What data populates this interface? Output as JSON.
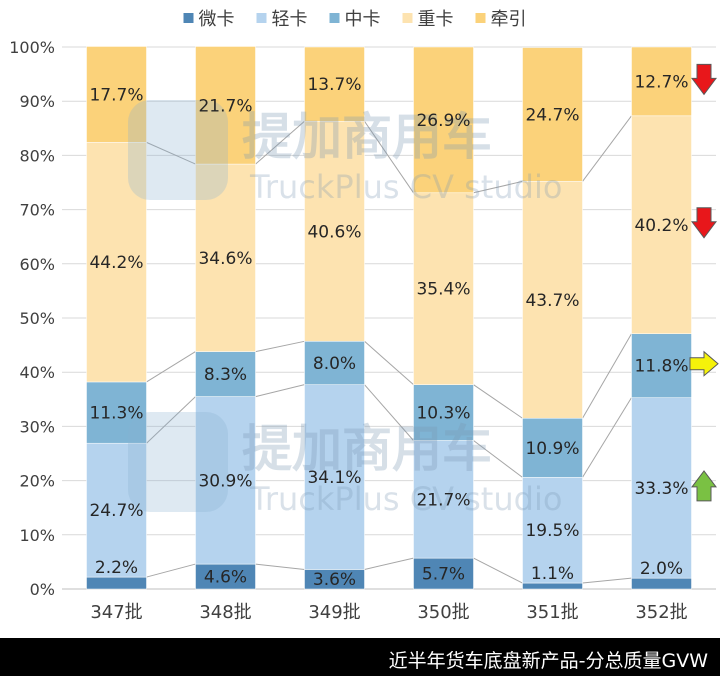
{
  "footer": {
    "caption": "近半年货车底盘新产品-分总质量GVW"
  },
  "watermark": {
    "cn": "提加商用车",
    "en": "TruckPlus CV studio"
  },
  "chart_data": {
    "type": "bar",
    "stacked": true,
    "percent": true,
    "categories": [
      "347批",
      "348批",
      "349批",
      "350批",
      "351批",
      "352批"
    ],
    "series": [
      {
        "name": "微卡",
        "color": "#4f86b5",
        "values": [
          2.2,
          4.6,
          3.6,
          5.7,
          1.1,
          2.0
        ]
      },
      {
        "name": "轻卡",
        "color": "#b5d3ee",
        "values": [
          24.7,
          30.9,
          34.1,
          21.7,
          19.5,
          33.3
        ]
      },
      {
        "name": "中卡",
        "color": "#7fb4d4",
        "values": [
          11.3,
          8.3,
          8.0,
          10.3,
          10.9,
          11.8
        ]
      },
      {
        "name": "重卡",
        "color": "#fde3b0",
        "values": [
          44.2,
          34.6,
          40.6,
          35.4,
          43.7,
          40.2
        ]
      },
      {
        "name": "牵引",
        "color": "#fbd27a",
        "values": [
          17.7,
          21.7,
          13.7,
          26.9,
          24.7,
          12.7
        ]
      }
    ],
    "ylim": [
      0,
      100
    ],
    "yticks": [
      "0%",
      "10%",
      "20%",
      "30%",
      "40%",
      "50%",
      "60%",
      "70%",
      "80%",
      "90%",
      "100%"
    ],
    "legend_position": "top",
    "trend_arrows": [
      {
        "series": "牵引",
        "direction": "down",
        "color": "#e8171b"
      },
      {
        "series": "重卡",
        "direction": "down",
        "color": "#e8171b"
      },
      {
        "series": "中卡",
        "direction": "right",
        "color": "#f5f20a"
      },
      {
        "series": "轻卡",
        "direction": "up",
        "color": "#7ac143"
      }
    ]
  }
}
